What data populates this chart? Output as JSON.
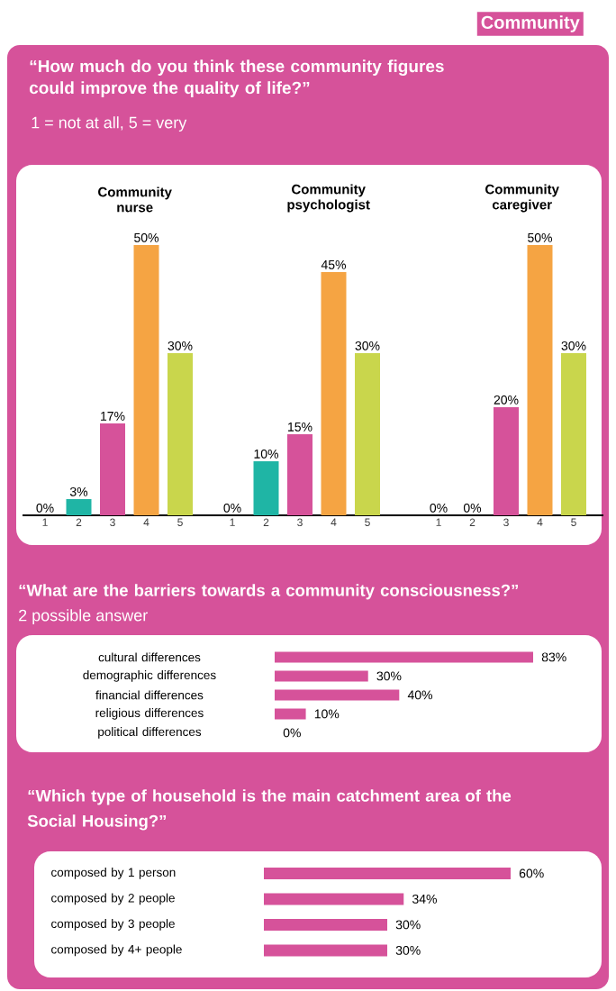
{
  "chart_data": [
    {
      "type": "other",
      "title": "“How much do you think these community figures could improve the quality of life?”",
      "subtitle": "1 = not at all, 5 = very",
      "annotations": [
        "Community"
      ]
    },
    {
      "type": "bar",
      "title": "Community nurse",
      "categories": [
        "1",
        "2",
        "3",
        "4",
        "5"
      ],
      "values": [
        0,
        3,
        17,
        50,
        30
      ],
      "value_labels": [
        "0%",
        "3%",
        "17%",
        "50%",
        "30%"
      ],
      "colors": [
        "#1fb5a5",
        "#1fb5a5",
        "#d6529a",
        "#f5a443",
        "#c9d64c"
      ]
    },
    {
      "type": "bar",
      "title": "Community psychologist",
      "categories": [
        "1",
        "2",
        "3",
        "4",
        "5"
      ],
      "values": [
        0,
        10,
        15,
        45,
        30
      ],
      "value_labels": [
        "0%",
        "10%",
        "15%",
        "45%",
        "30%"
      ],
      "colors": [
        "#1fb5a5",
        "#1fb5a5",
        "#d6529a",
        "#f5a443",
        "#c9d64c"
      ]
    },
    {
      "type": "bar",
      "title": "Community caregiver",
      "categories": [
        "1",
        "2",
        "3",
        "4",
        "5"
      ],
      "values": [
        0,
        0,
        20,
        50,
        30
      ],
      "value_labels": [
        "0%",
        "0%",
        "20%",
        "50%",
        "30%"
      ],
      "colors": [
        "#1fb5a5",
        "#1fb5a5",
        "#d6529a",
        "#f5a443",
        "#c9d64c"
      ]
    },
    {
      "type": "bar",
      "orientation": "horizontal",
      "title": "“What are the barriers towards a community consciousness?”",
      "subtitle": "2 possible answer",
      "categories": [
        "cultural differences",
        "demographic differences",
        "financial differences",
        "religious differences",
        "political differences"
      ],
      "values": [
        83,
        30,
        40,
        10,
        0
      ],
      "value_labels": [
        "83%",
        "30%",
        "40%",
        "10%",
        "0%"
      ],
      "color": "#d6529a"
    },
    {
      "type": "bar",
      "orientation": "horizontal",
      "title": "“Which type of household is the main catchment area of the Social Housing?”",
      "categories": [
        "composed by 1 person",
        "composed by 2 people",
        "composed by 3 people",
        "composed by 4+ people"
      ],
      "values": [
        60,
        34,
        30,
        30
      ],
      "value_labels": [
        "60%",
        "34%",
        "30%",
        "30%"
      ],
      "color": "#d6529a"
    }
  ]
}
